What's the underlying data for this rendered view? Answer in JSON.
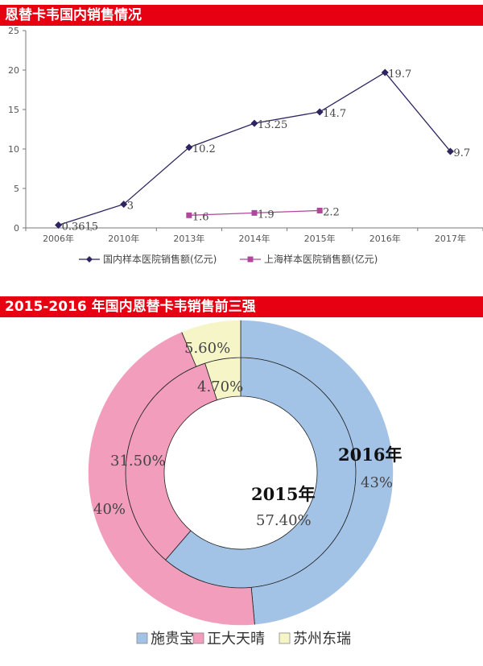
{
  "banner1": "恩替卡韦国内销售情况",
  "banner2": "2015-2016 年国内恩替卡韦销售前三强",
  "chart_data": [
    {
      "type": "line",
      "title": "恩替卡韦国内销售情况",
      "categories": [
        "2006年",
        "2010年",
        "2013年",
        "2014年",
        "2015年",
        "2016年",
        "2017年"
      ],
      "ylim": [
        0,
        25
      ],
      "yticks": [
        0,
        5,
        10,
        15,
        20,
        25
      ],
      "grid": false,
      "legend_position": "bottom",
      "series": [
        {
          "name": "国内样本医院销售额(亿元)",
          "values": [
            0.3615,
            3,
            10.2,
            13.25,
            14.7,
            19.7,
            9.7
          ],
          "labels": [
            "0.3615",
            "3",
            "10.2",
            "13.25",
            "14.7",
            "19.7",
            "9.7"
          ],
          "color": "#2e2460",
          "marker": "diamond"
        },
        {
          "name": "上海样本医院销售额(亿元)",
          "values": [
            null,
            null,
            1.6,
            1.9,
            2.2,
            null,
            null
          ],
          "labels": [
            null,
            null,
            "1.6",
            "1.9",
            "2.2",
            null,
            null
          ],
          "color": "#b0479a",
          "marker": "square"
        }
      ]
    },
    {
      "type": "pie",
      "subtype": "donut",
      "title": "2015-2016 年国内恩替卡韦销售前三强",
      "legend_position": "bottom",
      "categories": [
        "施贵宝",
        "正大天晴",
        "苏州东瑞"
      ],
      "colors": [
        "#a3c3e6",
        "#f19dbb",
        "#f6f5c8"
      ],
      "rings": [
        {
          "name": "2015年",
          "values": [
            57.4,
            31.5,
            4.7
          ],
          "labels": [
            "57.40%",
            "31.50%",
            "4.70%"
          ]
        },
        {
          "name": "2016年",
          "values": [
            43,
            40,
            5.6
          ],
          "labels": [
            "43%",
            "40%",
            "5.60%"
          ]
        }
      ]
    }
  ]
}
